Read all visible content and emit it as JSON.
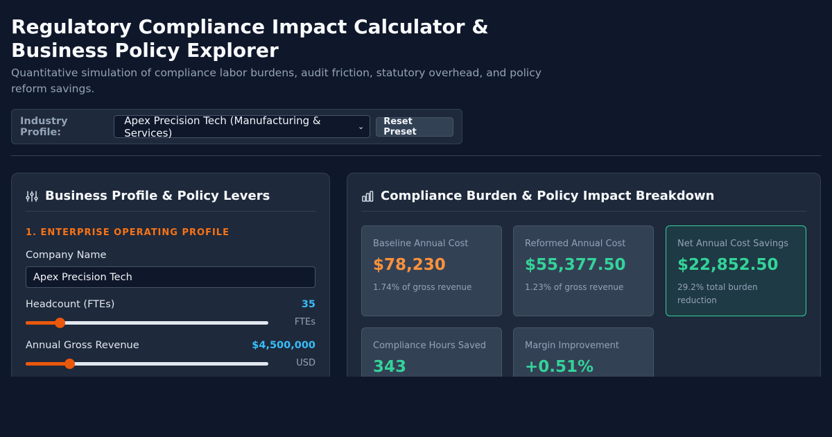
{
  "header": {
    "title": "Regulatory Compliance Impact Calculator & Business Policy Explorer",
    "subtitle": "Quantitative simulation of compliance labor burdens, audit friction, statutory overhead, and policy reform savings."
  },
  "toolbar": {
    "industry_label": "Industry Profile:",
    "industry_selected": "Apex Precision Tech (Manufacturing & Services)",
    "reset_label": "Reset Preset"
  },
  "left_panel": {
    "title": "Business Profile & Policy Levers",
    "icon": "sliders-icon",
    "section_label": "1. ENTERPRISE OPERATING PROFILE",
    "company_name_label": "Company Name",
    "company_name_value": "Apex Precision Tech",
    "headcount": {
      "label": "Headcount (FTEs)",
      "value": "35",
      "unit": "FTEs",
      "fill_fraction": 0.14
    },
    "revenue": {
      "label": "Annual Gross Revenue",
      "value": "$4,500,000",
      "unit": "USD",
      "fill_fraction": 0.18
    }
  },
  "right_panel": {
    "title": "Compliance Burden & Policy Impact Breakdown",
    "icon": "bar-chart-icon",
    "cards": [
      {
        "label": "Baseline Annual Cost",
        "value": "$78,230",
        "note": "1.74% of gross revenue"
      },
      {
        "label": "Reformed Annual Cost",
        "value": "$55,377.50",
        "note": "1.23% of gross revenue"
      },
      {
        "label": "Net Annual Cost Savings",
        "value": "$22,852.50",
        "note": "29.2% total burden reduction"
      },
      {
        "label": "Compliance Hours Saved",
        "value": "343"
      },
      {
        "label": "Margin Improvement",
        "value": "+0.51%"
      }
    ]
  },
  "colors": {
    "background": "#0f172a",
    "panel": "#1e293b",
    "accent_orange": "#f97316",
    "accent_blue": "#38bdf8",
    "accent_green": "#34d399"
  }
}
